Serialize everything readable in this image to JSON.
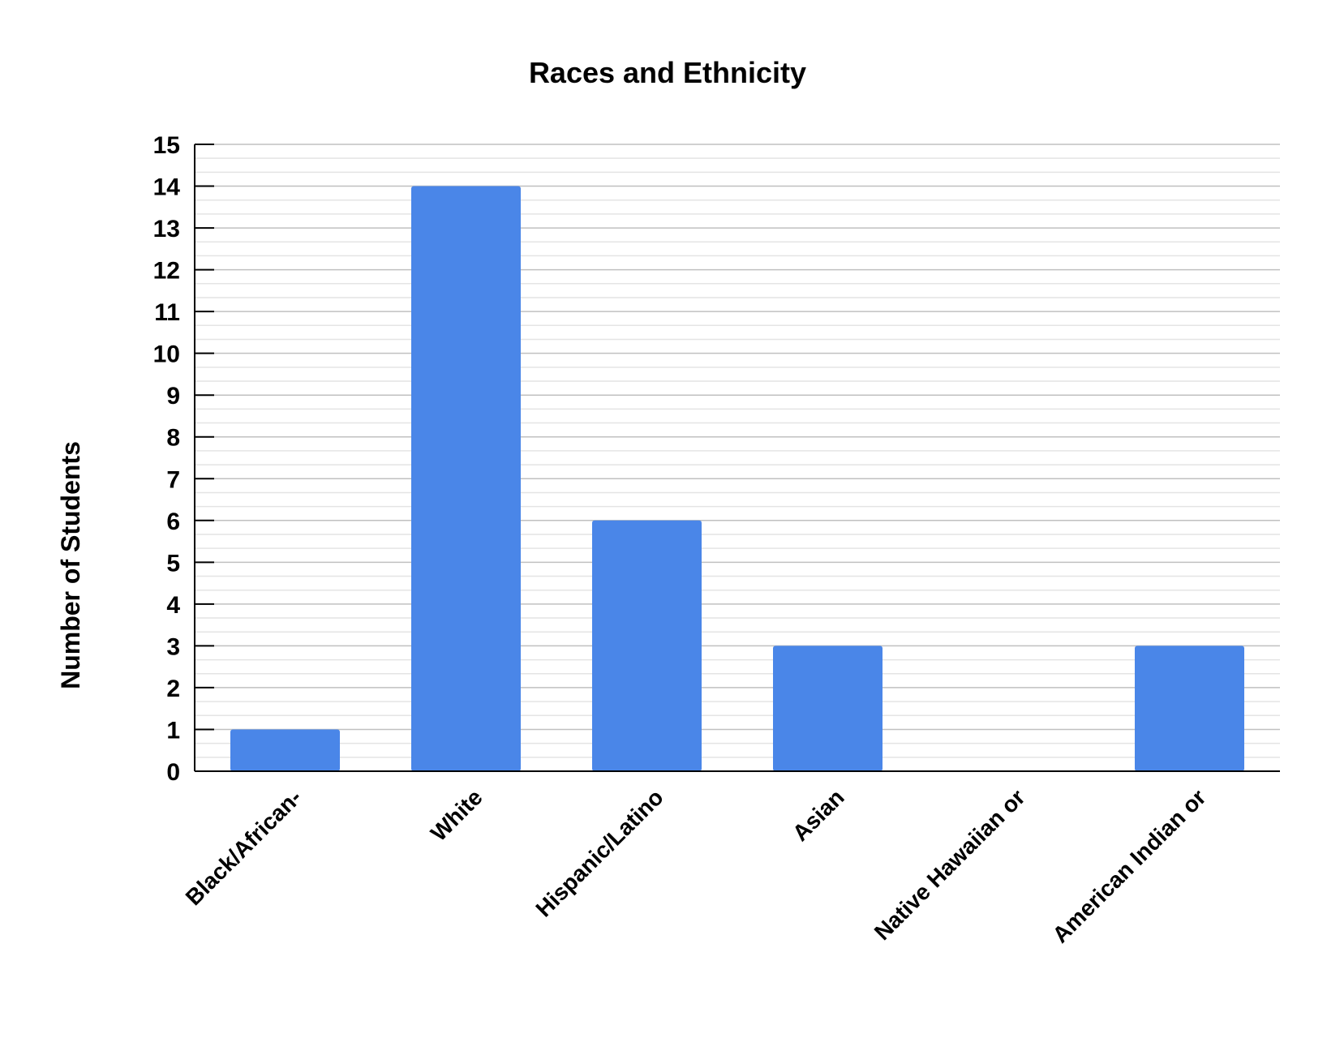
{
  "chart_data": {
    "type": "bar",
    "title": "Races and Ethnicity",
    "xlabel": "",
    "ylabel": "Number of Students",
    "categories": [
      "Black/African-",
      "White",
      "Hispanic/Latino",
      "Asian",
      "Native Hawaiian or",
      "American Indian or"
    ],
    "values": [
      1,
      14,
      6,
      3,
      0,
      3
    ],
    "ylim": [
      0,
      15
    ],
    "yticks": [
      0,
      1,
      2,
      3,
      4,
      5,
      6,
      7,
      8,
      9,
      10,
      11,
      12,
      13,
      14,
      15
    ],
    "grid": true,
    "bar_color": "#4a86e8",
    "major_grid_color": "#c0c0c0",
    "minor_grid_color": "#e4e4e4"
  }
}
